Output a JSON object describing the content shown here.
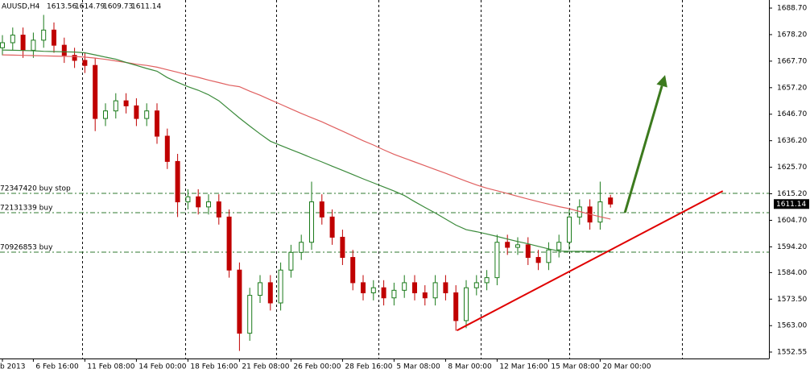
{
  "chart_data": {
    "type": "candlestick",
    "title": "AUUSD,H4",
    "categories": [
      "b 2013",
      null,
      null,
      "6 Feb 16:00",
      null,
      null,
      null,
      null,
      "11 Feb 08:00",
      null,
      null,
      null,
      null,
      "14 Feb 00:00",
      null,
      null,
      null,
      null,
      "18 Feb 16:00",
      null,
      null,
      null,
      null,
      "21 Feb 08:00",
      null,
      null,
      null,
      null,
      "26 Feb 00:00",
      null,
      null,
      null,
      null,
      "28 Feb 16:00",
      null,
      null,
      null,
      null,
      "5 Mar 08:00",
      null,
      null,
      null,
      null,
      "8 Mar 00:00",
      null,
      null,
      null,
      null,
      "12 Mar 16:00",
      null,
      null,
      null,
      null,
      "15 Mar 08:00",
      null,
      null,
      null,
      null,
      "20 Mar 00:00",
      null
    ],
    "open": [
      1673,
      1675,
      1678,
      1672,
      1676,
      1680,
      1674,
      1670,
      1668,
      1666,
      1645,
      1648,
      1652,
      1650,
      1645,
      1648,
      1638,
      1628,
      1612,
      1614,
      1610,
      1612,
      1606,
      1585,
      1560,
      1575,
      1580,
      1572,
      1585,
      1592,
      1596,
      1612,
      1606,
      1598,
      1590,
      1580,
      1576,
      1578,
      1574,
      1577,
      1580,
      1576,
      1574,
      1580,
      1576,
      1565,
      1578,
      1580,
      1582,
      1596,
      1594,
      1595,
      1590,
      1588,
      1593,
      1596,
      1606,
      1610,
      1604,
      1613.56
    ],
    "high": [
      1678,
      1681,
      1681,
      1679,
      1686,
      1683,
      1677,
      1673,
      1671,
      1669,
      1651,
      1655,
      1655,
      1653,
      1651,
      1651,
      1641,
      1631,
      1617,
      1617,
      1615,
      1615,
      1609,
      1588,
      1578,
      1583,
      1583,
      1588,
      1595,
      1599,
      1620,
      1615,
      1609,
      1601,
      1593,
      1583,
      1581,
      1581,
      1580,
      1583,
      1583,
      1579,
      1583,
      1583,
      1579,
      1581,
      1583,
      1585,
      1599,
      1599,
      1598,
      1598,
      1593,
      1596,
      1599,
      1609,
      1613,
      1613,
      1620,
      1614.79
    ],
    "low": [
      1670,
      1672,
      1669,
      1669,
      1673,
      1671,
      1667,
      1665,
      1663,
      1640,
      1642,
      1645,
      1647,
      1642,
      1642,
      1635,
      1625,
      1606,
      1609,
      1607,
      1607,
      1603,
      1582,
      1553,
      1557,
      1572,
      1569,
      1569,
      1582,
      1589,
      1593,
      1603,
      1595,
      1587,
      1577,
      1573,
      1573,
      1571,
      1571,
      1574,
      1573,
      1571,
      1571,
      1573,
      1561,
      1562,
      1575,
      1577,
      1579,
      1591,
      1591,
      1587,
      1585,
      1585,
      1590,
      1593,
      1603,
      1601,
      1601,
      1609.73
    ],
    "close": [
      1675,
      1678,
      1672,
      1676,
      1680,
      1674,
      1670,
      1668,
      1666,
      1645,
      1648,
      1652,
      1650,
      1645,
      1648,
      1638,
      1628,
      1612,
      1614,
      1610,
      1612,
      1606,
      1585,
      1560,
      1575,
      1580,
      1572,
      1585,
      1592,
      1596,
      1612,
      1606,
      1598,
      1590,
      1580,
      1576,
      1578,
      1574,
      1577,
      1580,
      1576,
      1574,
      1580,
      1576,
      1565,
      1578,
      1580,
      1582,
      1596,
      1594,
      1595,
      1590,
      1588,
      1593,
      1596,
      1606,
      1610,
      1604,
      1612,
      1611.14
    ],
    "bull_color": "#1a7a1a",
    "bear_color": "#c00000",
    "averages": [
      {
        "color": "#e06060",
        "values": [
          1670.2,
          1670.1,
          1670.0,
          1669.9,
          1669.8,
          1669.7,
          1669.6,
          1669.5,
          1669.3,
          1668.9,
          1668.4,
          1667.8,
          1667.2,
          1666.5,
          1666.0,
          1665.3,
          1664.3,
          1663.3,
          1662.2,
          1661.3,
          1660.2,
          1659.2,
          1658.2,
          1657.6,
          1655.8,
          1654.2,
          1652.4,
          1650.6,
          1648.8,
          1647.0,
          1645.3,
          1643.7,
          1641.8,
          1640.0,
          1638.1,
          1636.2,
          1634.5,
          1632.6,
          1630.8,
          1629.3,
          1627.8,
          1626.3,
          1624.8,
          1623.3,
          1621.7,
          1620.2,
          1618.7,
          1617.4,
          1616.4,
          1615.3,
          1614.2,
          1613.1,
          1612.1,
          1611.1,
          1610.1,
          1609.3,
          1608.2,
          1607.1,
          1606.1,
          1605.2
        ]
      },
      {
        "color": "#3a8a3a",
        "values": [
          1672.1,
          1672.0,
          1671.9,
          1671.8,
          1671.6,
          1671.5,
          1671.4,
          1671.3,
          1671.0,
          1670.2,
          1669.3,
          1668.5,
          1667.2,
          1666.0,
          1664.8,
          1663.7,
          1661.2,
          1659.3,
          1657.6,
          1656.2,
          1654.4,
          1652.0,
          1648.6,
          1645.2,
          1642.0,
          1638.9,
          1636.0,
          1634.3,
          1632.7,
          1631.1,
          1629.4,
          1627.8,
          1626.1,
          1624.5,
          1622.8,
          1621.1,
          1619.5,
          1617.9,
          1616.3,
          1614.5,
          1612.1,
          1609.8,
          1607.6,
          1605.2,
          1602.8,
          1601.0,
          1600.2,
          1599.3,
          1598.3,
          1597.3,
          1596.3,
          1595.4,
          1594.4,
          1593.4,
          1592.5,
          1592.4,
          1592.4,
          1592.4,
          1592.4,
          1592.4
        ]
      }
    ],
    "orders": [
      {
        "label": "72347420 buy stop",
        "price": 1615.35
      },
      {
        "label": "72131339 buy",
        "price": 1607.7
      },
      {
        "label": "70926853 buy",
        "price": 1592.1
      }
    ],
    "order_color": "#2f7a2f",
    "trendlines": [
      {
        "color": "#e00000",
        "x": [
          44.1,
          69.9
        ],
        "y": [
          1561.1,
          1616.3
        ]
      }
    ],
    "arrows": [
      {
        "color": "#3c7a1e",
        "x": [
          60.4,
          64.3
        ],
        "y": [
          1607.7,
          1662.2
        ]
      }
    ],
    "ylim": [
      1550,
      1691.9
    ],
    "yticks": [
      {
        "value": 1688.7,
        "label": "1688.70"
      },
      {
        "value": 1678.2,
        "label": "1678.20"
      },
      {
        "value": 1667.7,
        "label": "1667.70"
      },
      {
        "value": 1657.2,
        "label": "1657.20"
      },
      {
        "value": 1646.7,
        "label": "1646.70"
      },
      {
        "value": 1636.2,
        "label": "1636.20"
      },
      {
        "value": 1625.7,
        "label": "1625.70"
      },
      {
        "value": 1615.2,
        "label": "1615.20"
      },
      {
        "value": 1604.7,
        "label": "1604.70"
      },
      {
        "value": 1594.2,
        "label": "1594.20"
      },
      {
        "value": 1584,
        "label": "1584.00"
      },
      {
        "value": 1573.5,
        "label": "1573.50"
      },
      {
        "value": 1563,
        "label": "1563.00"
      },
      1552.55
    ]
  }
}
